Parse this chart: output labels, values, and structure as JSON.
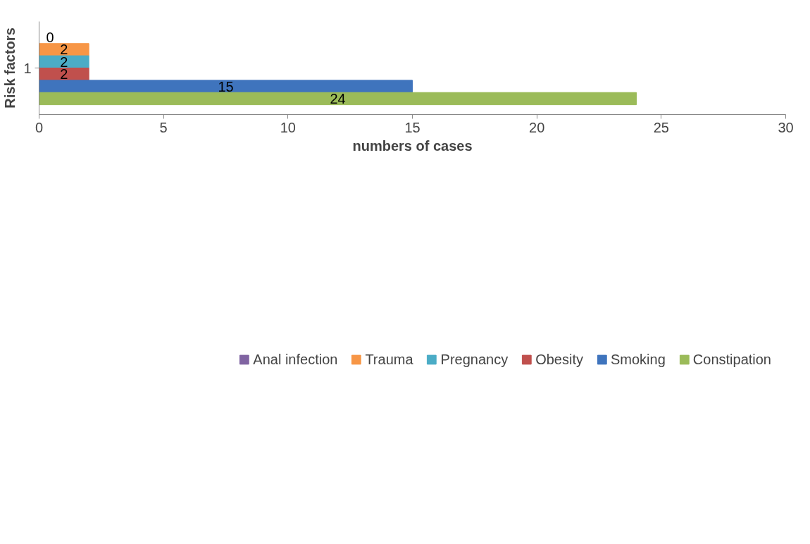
{
  "chart_data": {
    "type": "bar",
    "orientation": "horizontal",
    "xlabel": "numbers of cases",
    "ylabel": "Risk factors",
    "categories": [
      "1"
    ],
    "series": [
      {
        "name": "Anal infection",
        "color": "#8064a2",
        "values": [
          0
        ]
      },
      {
        "name": "Trauma",
        "color": "#f79646",
        "values": [
          2
        ]
      },
      {
        "name": "Pregnancy",
        "color": "#4bacc6",
        "values": [
          2
        ]
      },
      {
        "name": "Obesity",
        "color": "#c0504d",
        "values": [
          2
        ]
      },
      {
        "name": "Smoking",
        "color": "#3f74bd",
        "values": [
          15
        ]
      },
      {
        "name": "Constipation",
        "color": "#9bbb59",
        "values": [
          24
        ]
      }
    ],
    "xlim": [
      0,
      30
    ],
    "xticks": [
      0,
      5,
      10,
      15,
      20,
      25,
      30
    ],
    "grid": false,
    "legend": "bottom",
    "data_labels": true
  }
}
